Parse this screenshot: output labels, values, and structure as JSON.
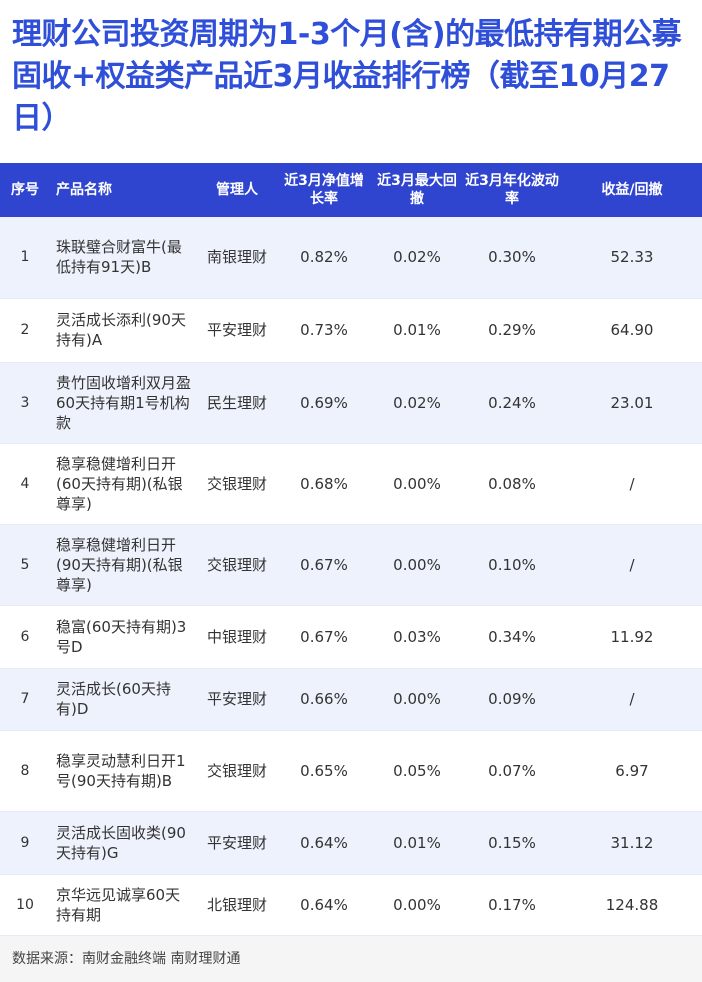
{
  "title": "理财公司投资周期为1-3个月(含)的最低持有期公募固收+权益类产品近3月收益排行榜（截至10月27日）",
  "table": {
    "headers": [
      "序号",
      "产品名称",
      "管理人",
      "近3月净值增长率",
      "近3月最大回撤",
      "近3月年化波动率",
      "收益/回撤"
    ],
    "rows": [
      {
        "idx": "1",
        "name": "珠联璧合财富牛(最低持有91天)B",
        "manager": "南银理财",
        "growth": "0.82%",
        "drawdown": "0.02%",
        "volatility": "0.30%",
        "ratio": "52.33"
      },
      {
        "idx": "2",
        "name": "灵活成长添利(90天持有)A",
        "manager": "平安理财",
        "growth": "0.73%",
        "drawdown": "0.01%",
        "volatility": "0.29%",
        "ratio": "64.90"
      },
      {
        "idx": "3",
        "name": "贵竹固收增利双月盈60天持有期1号机构款",
        "manager": "民生理财",
        "growth": "0.69%",
        "drawdown": "0.02%",
        "volatility": "0.24%",
        "ratio": "23.01"
      },
      {
        "idx": "4",
        "name": "稳享稳健增利日开(60天持有期)(私银尊享)",
        "manager": "交银理财",
        "growth": "0.68%",
        "drawdown": "0.00%",
        "volatility": "0.08%",
        "ratio": "/"
      },
      {
        "idx": "5",
        "name": "稳享稳健增利日开(90天持有期)(私银尊享)",
        "manager": "交银理财",
        "growth": "0.67%",
        "drawdown": "0.00%",
        "volatility": "0.10%",
        "ratio": "/"
      },
      {
        "idx": "6",
        "name": "稳富(60天持有期)3号D",
        "manager": "中银理财",
        "growth": "0.67%",
        "drawdown": "0.03%",
        "volatility": "0.34%",
        "ratio": "11.92"
      },
      {
        "idx": "7",
        "name": "灵活成长(60天持有)D",
        "manager": "平安理财",
        "growth": "0.66%",
        "drawdown": "0.00%",
        "volatility": "0.09%",
        "ratio": "/"
      },
      {
        "idx": "8",
        "name": "稳享灵动慧利日开1号(90天持有期)B",
        "manager": "交银理财",
        "growth": "0.65%",
        "drawdown": "0.05%",
        "volatility": "0.07%",
        "ratio": "6.97"
      },
      {
        "idx": "9",
        "name": "灵活成长固收类(90天持有)G",
        "manager": "平安理财",
        "growth": "0.64%",
        "drawdown": "0.01%",
        "volatility": "0.15%",
        "ratio": "31.12"
      },
      {
        "idx": "10",
        "name": "京华远见诚享60天持有期",
        "manager": "北银理财",
        "growth": "0.64%",
        "drawdown": "0.00%",
        "volatility": "0.17%",
        "ratio": "124.88"
      }
    ]
  },
  "footer": "数据来源：南财金融终端 南财理财通",
  "colors": {
    "title": "#2f4fd8",
    "header_bg": "#2f45d0",
    "row_alt": "#eef2fd"
  }
}
